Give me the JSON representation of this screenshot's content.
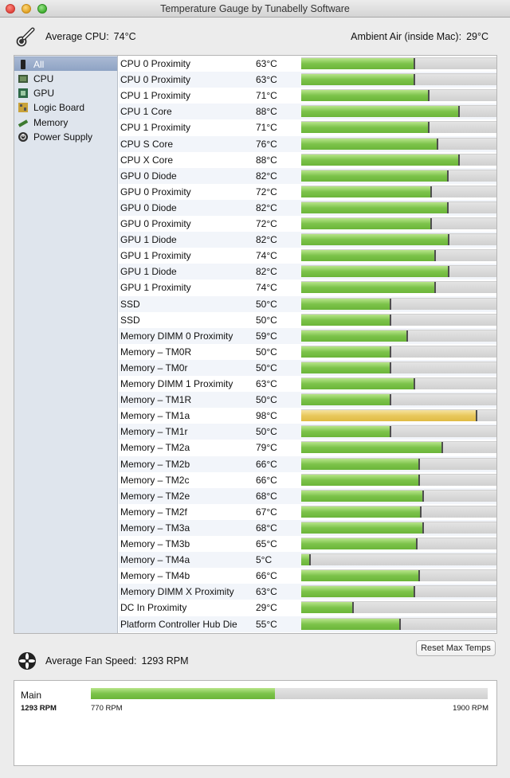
{
  "window": {
    "title": "Temperature Gauge by Tunabelly Software"
  },
  "header": {
    "avg_cpu_label": "Average CPU:",
    "avg_cpu_value": "74°C",
    "ambient_label": "Ambient Air (inside Mac):",
    "ambient_value": "29°C"
  },
  "sidebar": {
    "items": [
      {
        "label": "All",
        "icon": "mac-icon",
        "selected": true
      },
      {
        "label": "CPU",
        "icon": "cpu-chip-icon"
      },
      {
        "label": "GPU",
        "icon": "gpu-chip-icon"
      },
      {
        "label": "Logic Board",
        "icon": "logic-board-icon"
      },
      {
        "label": "Memory",
        "icon": "memory-stick-icon"
      },
      {
        "label": "Power Supply",
        "icon": "power-icon"
      }
    ]
  },
  "sensors": [
    {
      "name": "CPU 0 Proximity",
      "temp": "63°C",
      "level": 0.58
    },
    {
      "name": "CPU 0 Proximity",
      "temp": "63°C",
      "level": 0.58
    },
    {
      "name": "CPU 1 Proximity",
      "temp": "71°C",
      "level": 0.655
    },
    {
      "name": "CPU 1 Core",
      "temp": "88°C",
      "level": 0.81
    },
    {
      "name": "CPU 1 Proximity",
      "temp": "71°C",
      "level": 0.655
    },
    {
      "name": "CPU S Core",
      "temp": "76°C",
      "level": 0.7
    },
    {
      "name": "CPU X Core",
      "temp": "88°C",
      "level": 0.81
    },
    {
      "name": "GPU 0 Diode",
      "temp": "82°C",
      "level": 0.75
    },
    {
      "name": "GPU 0 Proximity",
      "temp": "72°C",
      "level": 0.665
    },
    {
      "name": "GPU 0 Diode",
      "temp": "82°C",
      "level": 0.75
    },
    {
      "name": "GPU 0 Proximity",
      "temp": "72°C",
      "level": 0.665
    },
    {
      "name": "GPU 1 Diode",
      "temp": "82°C",
      "level": 0.755
    },
    {
      "name": "GPU 1 Proximity",
      "temp": "74°C",
      "level": 0.685
    },
    {
      "name": "GPU 1 Diode",
      "temp": "82°C",
      "level": 0.755
    },
    {
      "name": "GPU 1 Proximity",
      "temp": "74°C",
      "level": 0.685
    },
    {
      "name": "SSD",
      "temp": "50°C",
      "level": 0.46
    },
    {
      "name": "SSD",
      "temp": "50°C",
      "level": 0.46
    },
    {
      "name": "Memory DIMM 0 Proximity",
      "temp": "59°C",
      "level": 0.545
    },
    {
      "name": "Memory – TM0R",
      "temp": "50°C",
      "level": 0.46
    },
    {
      "name": "Memory – TM0r",
      "temp": "50°C",
      "level": 0.46
    },
    {
      "name": "Memory DIMM 1 Proximity",
      "temp": "63°C",
      "level": 0.58
    },
    {
      "name": "Memory – TM1R",
      "temp": "50°C",
      "level": 0.46
    },
    {
      "name": "Memory – TM1a",
      "temp": "98°C",
      "level": 0.9,
      "status": "hot"
    },
    {
      "name": "Memory – TM1r",
      "temp": "50°C",
      "level": 0.46
    },
    {
      "name": "Memory – TM2a",
      "temp": "79°C",
      "level": 0.725
    },
    {
      "name": "Memory – TM2b",
      "temp": "66°C",
      "level": 0.605
    },
    {
      "name": "Memory – TM2c",
      "temp": "66°C",
      "level": 0.605
    },
    {
      "name": "Memory – TM2e",
      "temp": "68°C",
      "level": 0.625
    },
    {
      "name": "Memory – TM2f",
      "temp": "67°C",
      "level": 0.615
    },
    {
      "name": "Memory – TM3a",
      "temp": "68°C",
      "level": 0.625
    },
    {
      "name": "Memory – TM3b",
      "temp": "65°C",
      "level": 0.595
    },
    {
      "name": "Memory – TM4a",
      "temp": "5°C",
      "level": 0.05
    },
    {
      "name": "Memory – TM4b",
      "temp": "66°C",
      "level": 0.605
    },
    {
      "name": "Memory DIMM X Proximity",
      "temp": "63°C",
      "level": 0.58
    },
    {
      "name": "DC In Proximity",
      "temp": "29°C",
      "level": 0.27
    },
    {
      "name": "Platform Controller Hub Die",
      "temp": "55°C",
      "level": 0.51
    }
  ],
  "reset_button": "Reset Max Temps",
  "fan": {
    "avg_label": "Average Fan Speed:",
    "avg_value": "1293 RPM",
    "name": "Main",
    "current": "1293 RPM",
    "min": "770 RPM",
    "max": "1900 RPM",
    "level": 0.463
  },
  "colors": {
    "bar_green": "#7cc34a",
    "bar_hot": "#e9c85c",
    "sidebar_bg": "#dfe5ed",
    "selected": "#8ea3c4"
  }
}
